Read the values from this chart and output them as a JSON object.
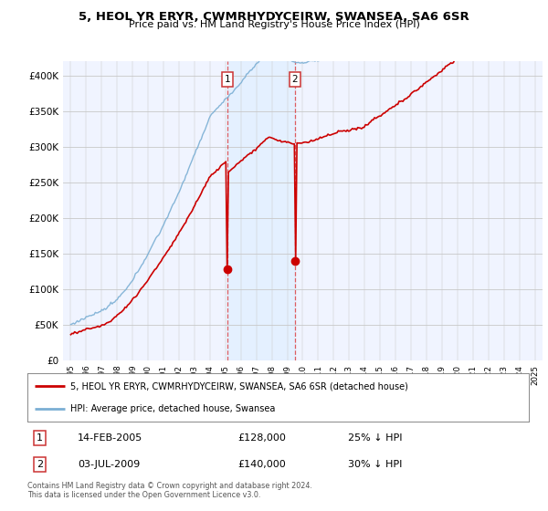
{
  "title": "5, HEOL YR ERYR, CWMRHYDYCEIRW, SWANSEA, SA6 6SR",
  "subtitle": "Price paid vs. HM Land Registry's House Price Index (HPI)",
  "ylim": [
    0,
    420000
  ],
  "yticks": [
    0,
    50000,
    100000,
    150000,
    200000,
    250000,
    300000,
    350000,
    400000
  ],
  "ytick_labels": [
    "£0",
    "£50K",
    "£100K",
    "£150K",
    "£200K",
    "£250K",
    "£300K",
    "£350K",
    "£400K"
  ],
  "hpi_color": "#7bafd4",
  "price_color": "#cc0000",
  "sale1_x": 2005.12,
  "sale1_y": 128000,
  "sale2_x": 2009.5,
  "sale2_y": 140000,
  "sale1_date": "14-FEB-2005",
  "sale1_price": "£128,000",
  "sale1_hpi": "25% ↓ HPI",
  "sale2_date": "03-JUL-2009",
  "sale2_price": "£140,000",
  "sale2_hpi": "30% ↓ HPI",
  "legend_line1": "5, HEOL YR ERYR, CWMRHYDYCEIRW, SWANSEA, SA6 6SR (detached house)",
  "legend_line2": "HPI: Average price, detached house, Swansea",
  "footer": "Contains HM Land Registry data © Crown copyright and database right 2024.\nThis data is licensed under the Open Government Licence v3.0.",
  "xlim_start": 1994.5,
  "xlim_end": 2025.5,
  "shaded_color": "#ddeeff",
  "shaded_alpha": 0.6,
  "shaded_start": 2005.12,
  "shaded_end": 2009.5,
  "plot_bg": "#f0f4ff"
}
